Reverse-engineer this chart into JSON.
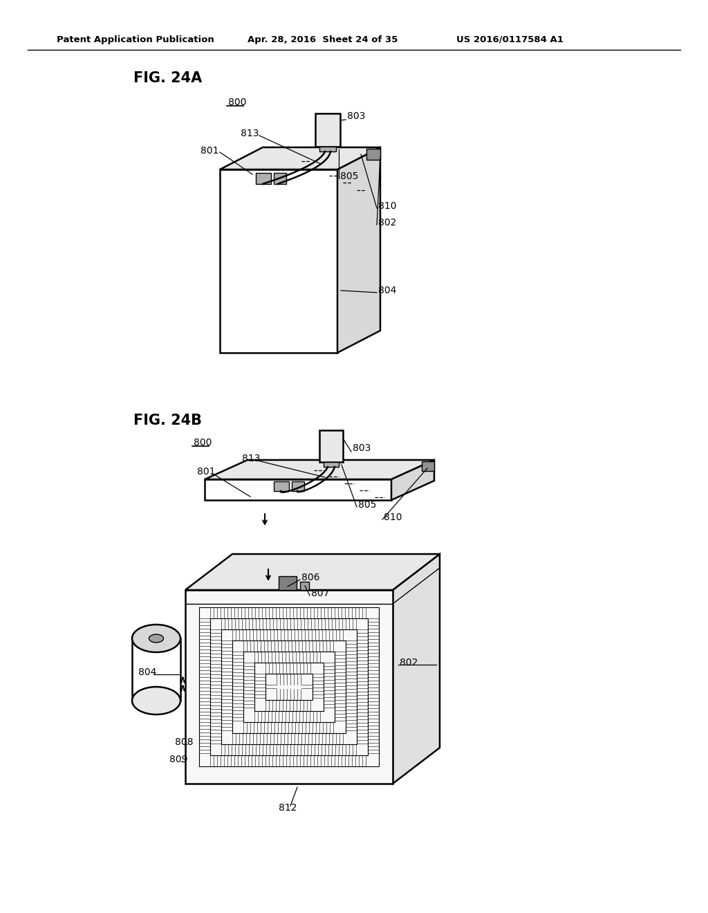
{
  "bg_color": "#ffffff",
  "header_text": "Patent Application Publication",
  "header_date": "Apr. 28, 2016  Sheet 24 of 35",
  "header_patent": "US 2016/0117584 A1",
  "fig_a_label": "FIG. 24A",
  "fig_b_label": "FIG. 24B",
  "line_color": "#000000",
  "fill_white": "#ffffff",
  "fill_light": "#f0f0f0",
  "fill_mid": "#d8d8d8",
  "fill_dark": "#888888",
  "fill_chip": "#e0e0e0"
}
